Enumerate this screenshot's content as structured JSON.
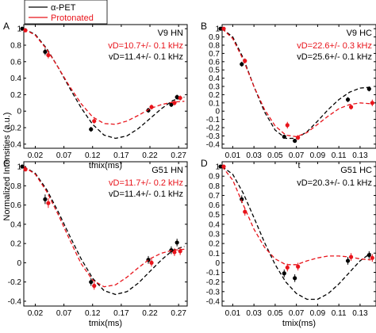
{
  "figure": {
    "ylabel": "Normalized Intensities (a.u.)",
    "legend": [
      {
        "label": "α-PET",
        "color": "#000000"
      },
      {
        "label": "Protonated",
        "color": "#e8141b"
      }
    ]
  },
  "chart_data": [
    {
      "type": "line",
      "panel": "A",
      "title": "V9 HN",
      "annotations": [
        {
          "text": "vD=10.7+/- 0.1 kHz",
          "color": "#e8141b"
        },
        {
          "text": "vD=11.4+/- 0.1 kHz",
          "color": "#000000"
        }
      ],
      "xlabel": "tmix(ms)",
      "xlim": [
        0.0,
        0.285
      ],
      "ylim": [
        -0.45,
        1.05
      ],
      "xticks": [
        "0.02",
        "0.07",
        "0.12",
        "0.17",
        "0.22",
        "0.27"
      ],
      "yticks": [
        "-0.4",
        "-0.2",
        "0",
        "0.2",
        "0.4",
        "0.6",
        "0.8",
        "1"
      ],
      "series": [
        {
          "name": "α-PET",
          "color": "#000000",
          "x": [
            0.0,
            0.04,
            0.12,
            0.22,
            0.26,
            0.27
          ],
          "y": [
            1.0,
            0.72,
            -0.22,
            0.01,
            0.08,
            0.17
          ],
          "err": [
            0.02,
            0.04,
            0.03,
            0.03,
            0.03,
            0.03
          ],
          "fit": [
            [
              0.0,
              1.0
            ],
            [
              0.02,
              0.93
            ],
            [
              0.04,
              0.76
            ],
            [
              0.06,
              0.53
            ],
            [
              0.08,
              0.28
            ],
            [
              0.1,
              0.04
            ],
            [
              0.12,
              -0.16
            ],
            [
              0.14,
              -0.29
            ],
            [
              0.16,
              -0.33
            ],
            [
              0.18,
              -0.3
            ],
            [
              0.2,
              -0.21
            ],
            [
              0.22,
              -0.09
            ],
            [
              0.24,
              0.03
            ],
            [
              0.26,
              0.13
            ],
            [
              0.28,
              0.17
            ]
          ]
        },
        {
          "name": "Protonated",
          "color": "#e8141b",
          "x": [
            0.0,
            0.04,
            0.12,
            0.22,
            0.26,
            0.27
          ],
          "y": [
            0.98,
            0.68,
            -0.12,
            0.05,
            0.1,
            0.16
          ],
          "err": [
            0.02,
            0.04,
            0.03,
            0.03,
            0.03,
            0.03
          ],
          "fit": [
            [
              0.0,
              1.0
            ],
            [
              0.02,
              0.92
            ],
            [
              0.04,
              0.75
            ],
            [
              0.06,
              0.53
            ],
            [
              0.08,
              0.3
            ],
            [
              0.1,
              0.09
            ],
            [
              0.12,
              -0.07
            ],
            [
              0.14,
              -0.15
            ],
            [
              0.16,
              -0.16
            ],
            [
              0.18,
              -0.12
            ],
            [
              0.2,
              -0.05
            ],
            [
              0.22,
              0.03
            ],
            [
              0.24,
              0.08
            ],
            [
              0.26,
              0.11
            ],
            [
              0.28,
              0.12
            ]
          ]
        }
      ]
    },
    {
      "type": "line",
      "panel": "B",
      "title": "V9 HC",
      "annotations": [
        {
          "text": "vD=22.6+/- 0.3 kHz",
          "color": "#e8141b"
        },
        {
          "text": "vD=25.6+/- 0.1 kHz",
          "color": "#000000"
        }
      ],
      "xlabel": "t",
      "xlim": [
        0.0,
        0.145
      ],
      "ylim": [
        -0.45,
        1.05
      ],
      "xticks": [
        "0.01",
        "0.03",
        "0.05",
        "0.07",
        "0.09",
        "0.11",
        "0.13"
      ],
      "yticks": [
        "-0.4",
        "-0.3",
        "-0.2",
        "-0.1",
        "0",
        "0.1",
        "0.2",
        "0.3",
        "0.4",
        "0.5",
        "0.6",
        "0.7",
        "0.8",
        "0.9",
        "1"
      ],
      "series": [
        {
          "name": "α-PET",
          "color": "#000000",
          "x": [
            0.0,
            0.02,
            0.06,
            0.07,
            0.12,
            0.14
          ],
          "y": [
            1.0,
            0.57,
            -0.31,
            -0.36,
            0.14,
            0.27
          ],
          "err": [
            0.02,
            0.03,
            0.02,
            0.02,
            0.03,
            0.03
          ],
          "fit": [
            [
              0.0,
              1.0
            ],
            [
              0.01,
              0.9
            ],
            [
              0.02,
              0.64
            ],
            [
              0.03,
              0.3
            ],
            [
              0.04,
              -0.01
            ],
            [
              0.05,
              -0.23
            ],
            [
              0.06,
              -0.33
            ],
            [
              0.07,
              -0.33
            ],
            [
              0.08,
              -0.25
            ],
            [
              0.09,
              -0.12
            ],
            [
              0.1,
              0.02
            ],
            [
              0.11,
              0.14
            ],
            [
              0.12,
              0.23
            ],
            [
              0.13,
              0.28
            ],
            [
              0.14,
              0.29
            ]
          ]
        },
        {
          "name": "Protonated",
          "color": "#e8141b",
          "x": [
            0.0,
            0.02,
            0.06,
            0.07,
            0.12,
            0.14
          ],
          "y": [
            1.0,
            0.61,
            -0.17,
            -0.32,
            0.05,
            0.1
          ],
          "err": [
            0.02,
            0.03,
            0.04,
            0.03,
            0.03,
            0.04
          ],
          "fit": [
            [
              0.0,
              1.0
            ],
            [
              0.01,
              0.88
            ],
            [
              0.02,
              0.62
            ],
            [
              0.03,
              0.3
            ],
            [
              0.04,
              0.02
            ],
            [
              0.05,
              -0.18
            ],
            [
              0.06,
              -0.29
            ],
            [
              0.07,
              -0.31
            ],
            [
              0.08,
              -0.26
            ],
            [
              0.09,
              -0.16
            ],
            [
              0.1,
              -0.06
            ],
            [
              0.11,
              0.03
            ],
            [
              0.12,
              0.08
            ],
            [
              0.13,
              0.1
            ],
            [
              0.14,
              0.09
            ]
          ]
        }
      ]
    },
    {
      "type": "line",
      "panel": "C",
      "title": "G51 HN",
      "annotations": [
        {
          "text": "vD=11.7+/- 0.2 kHz",
          "color": "#e8141b"
        },
        {
          "text": "vD=11.4+/- 0.1 kHz",
          "color": "#000000"
        }
      ],
      "xlabel": "tmix(ms)",
      "xlim": [
        0.0,
        0.285
      ],
      "ylim": [
        -0.45,
        1.05
      ],
      "xticks": [
        "0.02",
        "0.07",
        "0.12",
        "0.17",
        "0.22",
        "0.27"
      ],
      "yticks": [
        "-0.4",
        "-0.2",
        "0",
        "0.2",
        "0.4",
        "0.6",
        "0.8",
        "1"
      ],
      "series": [
        {
          "name": "α-PET",
          "color": "#000000",
          "x": [
            0.0,
            0.04,
            0.12,
            0.22,
            0.26,
            0.27
          ],
          "y": [
            1.0,
            0.66,
            -0.2,
            0.03,
            0.13,
            0.21
          ],
          "err": [
            0.02,
            0.05,
            0.04,
            0.04,
            0.04,
            0.04
          ],
          "fit": [
            [
              0.0,
              1.0
            ],
            [
              0.02,
              0.93
            ],
            [
              0.04,
              0.76
            ],
            [
              0.06,
              0.53
            ],
            [
              0.08,
              0.28
            ],
            [
              0.1,
              0.04
            ],
            [
              0.12,
              -0.16
            ],
            [
              0.14,
              -0.29
            ],
            [
              0.16,
              -0.33
            ],
            [
              0.18,
              -0.3
            ],
            [
              0.2,
              -0.21
            ],
            [
              0.22,
              -0.09
            ],
            [
              0.24,
              0.03
            ],
            [
              0.26,
              0.13
            ],
            [
              0.28,
              0.17
            ]
          ]
        },
        {
          "name": "Protonated",
          "color": "#e8141b",
          "x": [
            0.0,
            0.04,
            0.12,
            0.22,
            0.26,
            0.27
          ],
          "y": [
            0.97,
            0.62,
            -0.24,
            0.0,
            0.11,
            0.12
          ],
          "err": [
            0.02,
            0.05,
            0.04,
            0.04,
            0.04,
            0.04
          ],
          "fit": [
            [
              0.0,
              1.0
            ],
            [
              0.02,
              0.92
            ],
            [
              0.04,
              0.74
            ],
            [
              0.06,
              0.5
            ],
            [
              0.08,
              0.24
            ],
            [
              0.1,
              -0.01
            ],
            [
              0.12,
              -0.18
            ],
            [
              0.14,
              -0.25
            ],
            [
              0.16,
              -0.23
            ],
            [
              0.18,
              -0.15
            ],
            [
              0.2,
              -0.05
            ],
            [
              0.22,
              0.04
            ],
            [
              0.24,
              0.1
            ],
            [
              0.26,
              0.13
            ],
            [
              0.28,
              0.14
            ]
          ]
        }
      ]
    },
    {
      "type": "line",
      "panel": "D",
      "title": "G51 HC",
      "annotations": [
        {
          "text": "vD=20.3+/- 0.1 kHz",
          "color": "#000000"
        }
      ],
      "xlabel": "tmix(ms)",
      "xlim": [
        0.0,
        0.145
      ],
      "ylim": [
        -0.45,
        1.05
      ],
      "xticks": [
        "0.01",
        "0.03",
        "0.05",
        "0.07",
        "0.09",
        "0.11",
        "0.13"
      ],
      "yticks": [
        "-0.4",
        "-0.3",
        "-0.2",
        "-0.1",
        "0",
        "0.1",
        "0.2",
        "0.3",
        "0.4",
        "0.5",
        "0.6",
        "0.7",
        "0.8",
        "0.9",
        "1"
      ],
      "series": [
        {
          "name": "α-PET",
          "color": "#000000",
          "x": [
            0.0,
            0.02,
            0.06,
            0.07,
            0.12,
            0.14
          ],
          "y": [
            1.0,
            0.66,
            -0.11,
            -0.16,
            0.02,
            0.08
          ],
          "err": [
            0.02,
            0.04,
            0.04,
            0.04,
            0.04,
            0.04
          ],
          "fit": [
            [
              0.0,
              1.0
            ],
            [
              0.01,
              0.92
            ],
            [
              0.02,
              0.72
            ],
            [
              0.03,
              0.47
            ],
            [
              0.04,
              0.21
            ],
            [
              0.05,
              -0.02
            ],
            [
              0.06,
              -0.2
            ],
            [
              0.07,
              -0.32
            ],
            [
              0.08,
              -0.38
            ],
            [
              0.09,
              -0.38
            ],
            [
              0.1,
              -0.32
            ],
            [
              0.11,
              -0.22
            ],
            [
              0.12,
              -0.1
            ],
            [
              0.13,
              0.02
            ],
            [
              0.14,
              0.1
            ]
          ]
        },
        {
          "name": "Protonated",
          "color": "#e8141b",
          "x": [
            0.0,
            0.02,
            0.06,
            0.07,
            0.12,
            0.14
          ],
          "y": [
            1.0,
            0.53,
            -0.05,
            -0.04,
            0.06,
            0.05
          ],
          "err": [
            0.02,
            0.04,
            0.04,
            0.04,
            0.04,
            0.04
          ],
          "fit": [
            [
              0.0,
              1.0
            ],
            [
              0.01,
              0.86
            ],
            [
              0.02,
              0.6
            ],
            [
              0.03,
              0.35
            ],
            [
              0.04,
              0.16
            ],
            [
              0.05,
              0.04
            ],
            [
              0.06,
              -0.02
            ],
            [
              0.07,
              -0.02
            ],
            [
              0.08,
              0.02
            ],
            [
              0.09,
              0.05
            ],
            [
              0.1,
              0.07
            ],
            [
              0.11,
              0.07
            ],
            [
              0.12,
              0.06
            ],
            [
              0.13,
              0.04
            ],
            [
              0.14,
              0.03
            ]
          ]
        }
      ]
    }
  ]
}
